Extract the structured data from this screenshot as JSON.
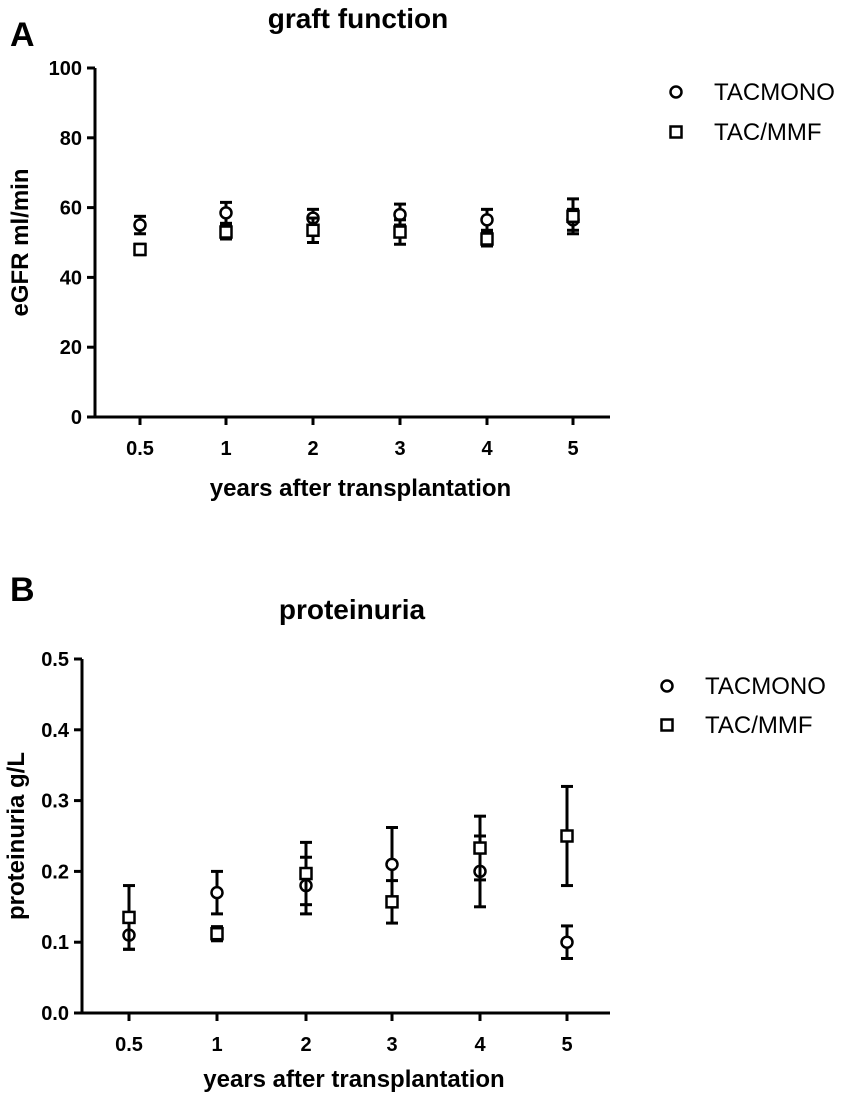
{
  "chart_data": [
    {
      "type": "scatter",
      "panel": "A",
      "title": "graft function",
      "xlabel": "years after transplantation",
      "ylabel": "eGFR ml/min",
      "categories": [
        "0.5",
        "1",
        "2",
        "3",
        "4",
        "5"
      ],
      "ylim": [
        0,
        100
      ],
      "yticks": [
        "0",
        "20",
        "40",
        "60",
        "80",
        "100"
      ],
      "grid": false,
      "legend_position": "top-right",
      "series": [
        {
          "name": "TACMONO",
          "marker": "circle",
          "values": [
            55,
            58.5,
            57,
            58,
            56.5,
            56.5
          ],
          "err": [
            2.5,
            3,
            2.5,
            3,
            3,
            3
          ]
        },
        {
          "name": "TAC/MMF",
          "marker": "square",
          "values": [
            48,
            53,
            53.5,
            53,
            51,
            57.5
          ],
          "err": [
            1.5,
            2,
            3.5,
            3.5,
            2,
            5
          ]
        }
      ]
    },
    {
      "type": "scatter",
      "panel": "B",
      "title": "proteinuria",
      "xlabel": "years after transplantation",
      "ylabel": "proteinuria g/L",
      "categories": [
        "0.5",
        "1",
        "2",
        "3",
        "4",
        "5"
      ],
      "ylim": [
        0,
        0.5
      ],
      "yticks": [
        "0.0",
        "0.1",
        "0.2",
        "0.3",
        "0.4",
        "0.5"
      ],
      "grid": false,
      "legend_position": "top-right",
      "series": [
        {
          "name": "TACMONO",
          "marker": "circle",
          "values": [
            0.11,
            0.17,
            0.18,
            0.21,
            0.2,
            0.1
          ],
          "err": [
            0.02,
            0.03,
            0.04,
            0.052,
            0.05,
            0.023
          ]
        },
        {
          "name": "TAC/MMF",
          "marker": "square",
          "values": [
            0.135,
            0.112,
            0.197,
            0.157,
            0.233,
            0.25
          ],
          "err": [
            0.045,
            0.01,
            0.044,
            0.03,
            0.045,
            0.07
          ]
        }
      ]
    }
  ]
}
